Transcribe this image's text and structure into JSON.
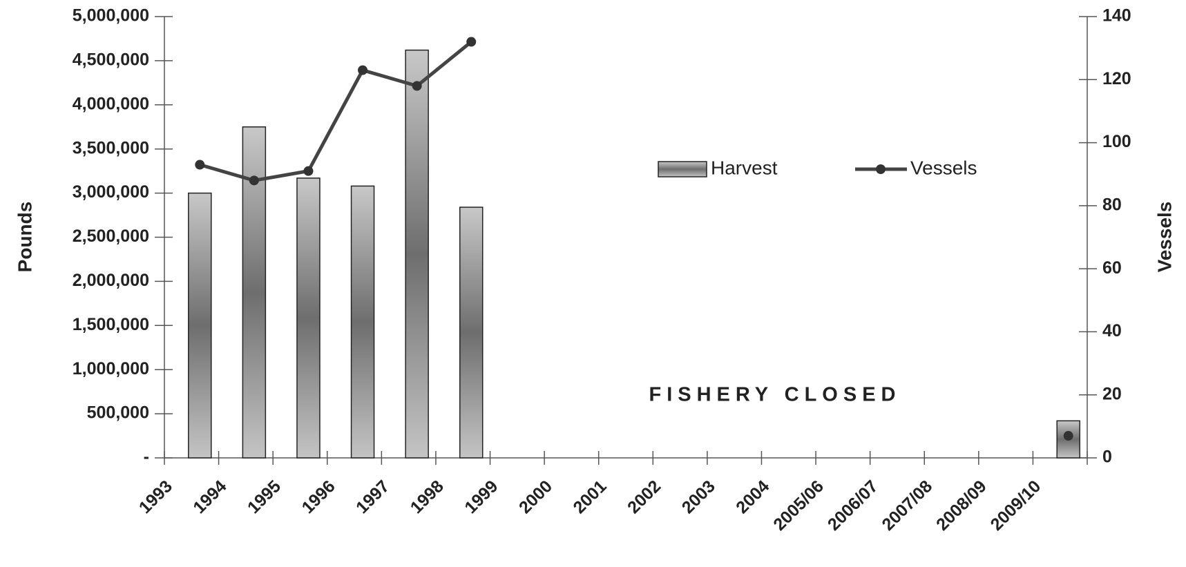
{
  "chart_data": {
    "type": "bar-line",
    "categories": [
      "1993",
      "1994",
      "1995",
      "1996",
      "1997",
      "1998",
      "1999",
      "2000",
      "2001",
      "2002",
      "2003",
      "2004",
      "2005/06",
      "2006/07",
      "2007/08",
      "2008/09",
      "2009/10"
    ],
    "series": [
      {
        "name": "Harvest",
        "type": "bar",
        "color": "#8c8c8c",
        "values": [
          3000000,
          3750000,
          3170000,
          3080000,
          4620000,
          2840000,
          null,
          null,
          null,
          null,
          null,
          null,
          null,
          null,
          null,
          null,
          420000
        ]
      },
      {
        "name": "Vessels",
        "type": "line",
        "axis": "y2",
        "color": "#444444",
        "values": [
          93,
          88,
          91,
          123,
          118,
          132,
          null,
          null,
          null,
          null,
          null,
          null,
          null,
          null,
          null,
          null,
          7
        ]
      }
    ],
    "ylabel": "Pounds",
    "y2label": "Vessels",
    "ylim": [
      0,
      5000000
    ],
    "yticks": [
      {
        "value": 0,
        "label": "-"
      },
      {
        "value": 500000,
        "label": "500,000"
      },
      {
        "value": 1000000,
        "label": "1,000,000"
      },
      {
        "value": 1500000,
        "label": "1,500,000"
      },
      {
        "value": 2000000,
        "label": "2,000,000"
      },
      {
        "value": 2500000,
        "label": "2,500,000"
      },
      {
        "value": 3000000,
        "label": "3,000,000"
      },
      {
        "value": 3500000,
        "label": "3,500,000"
      },
      {
        "value": 4000000,
        "label": "4,000,000"
      },
      {
        "value": 4500000,
        "label": "4,500,000"
      },
      {
        "value": 5000000,
        "label": "5,000,000"
      }
    ],
    "y2lim": [
      0,
      140
    ],
    "y2ticks": [
      0,
      20,
      40,
      60,
      80,
      100,
      120,
      140
    ],
    "annotation": "FISHERY CLOSED",
    "legend": "upper right"
  }
}
